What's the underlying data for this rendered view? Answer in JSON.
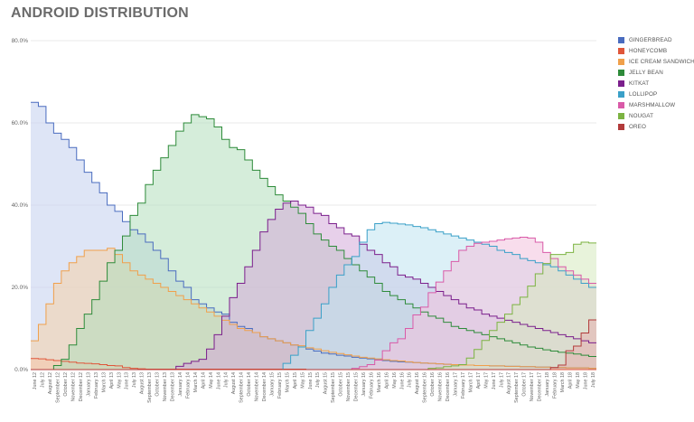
{
  "page_title": "ANDROID DISTRIBUTION",
  "chart_data": {
    "type": "area",
    "title": "ANDROID DISTRIBUTION",
    "ylim": [
      0,
      80
    ],
    "y_ticks": [
      "0.0%",
      "20.0%",
      "40.0%",
      "60.0%",
      "80.0%"
    ],
    "grid": true,
    "step": true,
    "legend_position": "right",
    "x": [
      "June 12",
      "July 12",
      "August 12",
      "September 12",
      "October 12",
      "November 12",
      "December 12",
      "January 13",
      "February 13",
      "March 13",
      "April 13",
      "May 13",
      "June 13",
      "July 13",
      "August 13",
      "September 13",
      "October 13",
      "November 13",
      "December 13",
      "January 14",
      "February 14",
      "March 14",
      "April 14",
      "May 14",
      "June 14",
      "July 14",
      "August 14",
      "September 14",
      "October 14",
      "November 14",
      "December 14",
      "January 15",
      "February 15",
      "March 15",
      "April 15",
      "May 15",
      "June 15",
      "July 15",
      "August 15",
      "September 15",
      "October 15",
      "November 15",
      "December 15",
      "January 16",
      "February 16",
      "March 16",
      "April 16",
      "May 16",
      "June 16",
      "July 16",
      "August 16",
      "September 16",
      "October 16",
      "November 16",
      "December 16",
      "January 17",
      "February 17",
      "March 17",
      "April 17",
      "May 17",
      "June 17",
      "July 17",
      "August 17",
      "September 17",
      "October 17",
      "November 17",
      "December 17",
      "January 18",
      "February 18",
      "March 18",
      "April 18",
      "May 18",
      "June 18",
      "July 18"
    ],
    "x_tick_labels": [
      "June 12",
      "July 12",
      "August 12",
      "September 12",
      "October 12",
      "November 12",
      "December 12",
      "January 13",
      "February 13",
      "March 13",
      "April 13",
      "May 13",
      "June 13",
      "July 13",
      "August 13",
      "September 13",
      "October 13",
      "November 13",
      "December 13",
      "January 14",
      "February 14",
      "March 14",
      "April 14",
      "May 14",
      "June 14",
      "July 14",
      "August 14",
      "September 14",
      "October 14",
      "November 14",
      "December 14",
      "January 15",
      "February 15",
      "March 15",
      "April 15",
      "May 15",
      "June 15",
      "July 15",
      "August 15",
      "September 15",
      "October 15",
      "November 15",
      "December 15",
      "January 16",
      "February 16",
      "March 16",
      "April 16",
      "May 16",
      "June 16",
      "July 16",
      "August 16",
      "September 16",
      "October 16",
      "November 16",
      "December 16",
      "January 17",
      "February 17",
      "March 17",
      "April 17",
      "May 17",
      "June 17",
      "July 17",
      "August 17",
      "September 17",
      "October 17",
      "November 17",
      "December 17",
      "January 18",
      "February 18",
      "March 18",
      "April 18",
      "May 18",
      "June 18",
      "July 18"
    ],
    "series": [
      {
        "name": "GINGERBREAD",
        "color": "#4a6cbf",
        "fill": "#c3cfee",
        "values": [
          65,
          64,
          60,
          57.5,
          56,
          54,
          51,
          48,
          45.5,
          43,
          40,
          38.5,
          36,
          34,
          33,
          31,
          29,
          27,
          24,
          21.5,
          20,
          17,
          16,
          15,
          14,
          13.5,
          11.5,
          10.5,
          10,
          9,
          8,
          7.5,
          7,
          6.5,
          6,
          5.5,
          5,
          4.5,
          4,
          3.8,
          3.5,
          3.3,
          3,
          2.8,
          2.6,
          2.4,
          2.2,
          2,
          1.9,
          1.8,
          1.7,
          1.6,
          1.5,
          1.4,
          1.3,
          1.2,
          1.1,
          1.1,
          1,
          1,
          0.9,
          0.9,
          0.8,
          0.8,
          0.7,
          0.7,
          0.6,
          0.6,
          0.5,
          0.5,
          0.4,
          0.4,
          0.4,
          0.3
        ]
      },
      {
        "name": "HONEYCOMB",
        "color": "#e0563a",
        "fill": "#f5b9aa",
        "values": [
          2.7,
          2.6,
          2.4,
          2.2,
          2,
          1.8,
          1.6,
          1.5,
          1.4,
          1.2,
          1,
          0.9,
          0.5,
          0.3,
          0.2,
          0.1,
          0.1,
          0.1,
          0.1,
          0.1,
          0.1,
          0.1,
          0.1,
          0.1,
          0.1,
          0.1,
          0.1,
          0.1,
          0.1,
          0.1,
          0.1,
          0.1,
          0.1,
          0.1,
          0.1,
          0.1,
          0,
          0,
          0,
          0,
          0,
          0,
          0,
          0,
          0,
          0,
          0,
          0,
          0,
          0,
          0,
          0,
          0,
          0,
          0,
          0,
          0,
          0,
          0,
          0,
          0,
          0,
          0,
          0,
          0,
          0,
          0,
          0,
          0,
          0,
          0,
          0,
          0,
          0
        ]
      },
      {
        "name": "ICE CREAM SANDWICH",
        "color": "#f0a04b",
        "fill": "#f6d2a8",
        "values": [
          7,
          11,
          16,
          21,
          24,
          26,
          27.5,
          29,
          29,
          29,
          29.5,
          28,
          26,
          24,
          23,
          22,
          21,
          20,
          19,
          18,
          17,
          16,
          15,
          14,
          13,
          12,
          11,
          10,
          9.5,
          9,
          8,
          7.5,
          7,
          6.5,
          6,
          5.8,
          5.3,
          5,
          4.6,
          4.2,
          3.9,
          3.6,
          3.3,
          3,
          2.8,
          2.6,
          2.4,
          2.2,
          2.1,
          1.9,
          1.7,
          1.6,
          1.5,
          1.4,
          1.3,
          1.2,
          1.1,
          1.1,
          1,
          1,
          0.9,
          0.9,
          0.8,
          0.8,
          0.7,
          0.7,
          0.6,
          0.6,
          0.5,
          0.5,
          0.4,
          0.4,
          0.4,
          0.3
        ]
      },
      {
        "name": "JELLY BEAN",
        "color": "#2e8b3a",
        "fill": "#b2dfbb",
        "values": [
          0,
          0,
          0,
          1,
          2.5,
          6,
          10,
          13.5,
          17,
          21.5,
          26,
          29,
          32.5,
          37.5,
          40.5,
          45,
          48.5,
          51.5,
          54.5,
          58,
          60,
          62,
          61.5,
          61,
          59,
          56,
          54,
          53.5,
          51,
          48.5,
          46.5,
          44.5,
          42.5,
          41,
          39.5,
          38,
          35.5,
          33,
          31.5,
          30,
          29,
          27,
          25.5,
          24,
          22.5,
          21,
          19,
          18,
          17,
          16,
          15,
          14,
          13,
          12.5,
          11.5,
          10.5,
          10,
          9.5,
          9,
          8.5,
          8,
          7.5,
          7,
          6.5,
          6,
          5.5,
          5.2,
          4.8,
          4.5,
          4.2,
          4,
          3.8,
          3.5,
          3.2
        ]
      },
      {
        "name": "KITKAT",
        "color": "#7b1f8c",
        "fill": "#d3a9d8",
        "values": [
          0,
          0,
          0,
          0,
          0,
          0,
          0,
          0,
          0,
          0,
          0,
          0,
          0,
          0,
          0,
          0,
          0,
          0,
          0,
          0.8,
          1.5,
          2,
          2.5,
          5,
          8.5,
          13,
          17.5,
          21,
          25,
          29,
          33.5,
          36.5,
          39,
          40.5,
          41,
          40,
          39.5,
          38,
          37.5,
          35.5,
          34.5,
          33,
          32.5,
          30.5,
          29,
          28,
          26,
          25,
          23,
          22.5,
          22,
          21,
          20,
          19,
          18,
          17,
          16,
          15,
          14.5,
          13.5,
          13,
          12.5,
          12,
          11.5,
          11,
          10.5,
          10,
          9.5,
          9,
          8.5,
          8,
          7.5,
          7,
          6.5
        ]
      },
      {
        "name": "LOLLIPOP",
        "color": "#3aa0c8",
        "fill": "#bfe3f0",
        "values": [
          0,
          0,
          0,
          0,
          0,
          0,
          0,
          0,
          0,
          0,
          0,
          0,
          0,
          0,
          0,
          0,
          0,
          0,
          0,
          0,
          0,
          0,
          0,
          0,
          0,
          0,
          0,
          0,
          0,
          0,
          0,
          0,
          0,
          1.5,
          3.5,
          5.5,
          9.5,
          12.5,
          16,
          20,
          23,
          25.5,
          27.5,
          31,
          34,
          35.5,
          35.8,
          35.6,
          35.4,
          35.2,
          34.8,
          34.5,
          34,
          33.5,
          33,
          32.5,
          32,
          31.5,
          31,
          30.5,
          30,
          29,
          28.5,
          28,
          27,
          26.5,
          26,
          25.5,
          25,
          24,
          23,
          22,
          21,
          20
        ]
      },
      {
        "name": "MARSHMALLOW",
        "color": "#d95aa8",
        "fill": "#f2c1dd",
        "values": [
          0,
          0,
          0,
          0,
          0,
          0,
          0,
          0,
          0,
          0,
          0,
          0,
          0,
          0,
          0,
          0,
          0,
          0,
          0,
          0,
          0,
          0,
          0,
          0,
          0,
          0,
          0,
          0,
          0,
          0,
          0,
          0,
          0,
          0,
          0,
          0,
          0,
          0,
          0,
          0,
          0,
          0,
          0.3,
          0.7,
          1.2,
          2.3,
          4.6,
          6.5,
          7.5,
          10,
          13.3,
          15.2,
          18.7,
          21.3,
          24,
          26.3,
          29,
          30,
          30.7,
          31,
          31.2,
          31.5,
          31.8,
          32,
          32.2,
          32,
          31,
          28.5,
          27,
          25,
          24,
          23,
          22,
          21
        ]
      },
      {
        "name": "NOUGAT",
        "color": "#7cb342",
        "fill": "#d5e9bd",
        "values": [
          0,
          0,
          0,
          0,
          0,
          0,
          0,
          0,
          0,
          0,
          0,
          0,
          0,
          0,
          0,
          0,
          0,
          0,
          0,
          0,
          0,
          0,
          0,
          0,
          0,
          0,
          0,
          0,
          0,
          0,
          0,
          0,
          0,
          0,
          0,
          0,
          0,
          0,
          0,
          0,
          0,
          0,
          0,
          0,
          0,
          0,
          0,
          0,
          0,
          0,
          0,
          0,
          0.3,
          0.4,
          0.7,
          0.9,
          1.2,
          2.8,
          4.9,
          7.1,
          9.5,
          11.5,
          13.5,
          15.8,
          17.6,
          20.3,
          23.3,
          25.8,
          28,
          28,
          28.5,
          30.5,
          31,
          30.8
        ]
      },
      {
        "name": "OREO",
        "color": "#b23b3b",
        "fill": "#e6b0b0",
        "values": [
          0,
          0,
          0,
          0,
          0,
          0,
          0,
          0,
          0,
          0,
          0,
          0,
          0,
          0,
          0,
          0,
          0,
          0,
          0,
          0,
          0,
          0,
          0,
          0,
          0,
          0,
          0,
          0,
          0,
          0,
          0,
          0,
          0,
          0,
          0,
          0,
          0,
          0,
          0,
          0,
          0,
          0,
          0,
          0,
          0,
          0,
          0,
          0,
          0,
          0,
          0,
          0,
          0,
          0,
          0,
          0,
          0,
          0,
          0,
          0,
          0,
          0,
          0,
          0,
          0,
          0,
          0,
          0,
          0.5,
          1.1,
          4.6,
          5.7,
          8.9,
          12.1
        ]
      }
    ]
  }
}
